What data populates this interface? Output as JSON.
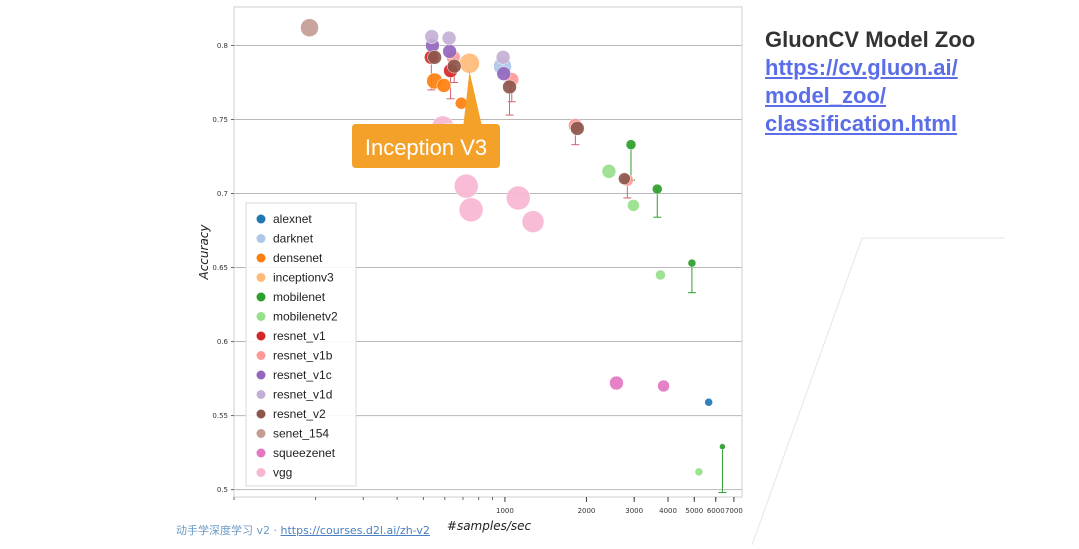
{
  "slide": {
    "title": "GluonCV Model Zoo",
    "link_lines": [
      "https://cv.gluon.ai/",
      "model_zoo/",
      "classification.html"
    ],
    "footer_text": "动手学深度学习 v2 · ",
    "footer_link": "https://courses.d2l.ai/zh-v2"
  },
  "callout": {
    "text": "Inception V3",
    "color": "#f4a12a"
  },
  "chart_data": {
    "type": "scatter",
    "xlabel": "#samples/sec",
    "ylabel": "Accuracy",
    "x_scale": "log",
    "xlim": [
      100,
      7500
    ],
    "ylim": [
      0.495,
      0.826
    ],
    "x_ticks": [
      1000,
      2000,
      3000,
      4000,
      5000,
      6000,
      7000
    ],
    "y_ticks": [
      0.5,
      0.55,
      0.6,
      0.65,
      0.7,
      0.75,
      0.8
    ],
    "y_tick_labels": [
      "0.5",
      "0.55",
      "0.6",
      "0.65",
      "0.7",
      "0.75",
      "0.8"
    ],
    "grid": "horizontal",
    "legend_position": "bottom-left",
    "series": [
      {
        "name": "alexnet",
        "color": "#1f77b4",
        "points": [
          [
            5650,
            0.559,
            4
          ]
        ]
      },
      {
        "name": "darknet",
        "color": "#aec7e8",
        "points": [
          [
            980,
            0.786,
            9
          ]
        ]
      },
      {
        "name": "densenet",
        "color": "#ff7f0e",
        "points": [
          [
            550,
            0.776,
            8
          ],
          [
            595,
            0.773,
            7
          ],
          [
            690,
            0.761,
            6
          ],
          [
            760,
            0.749,
            6
          ]
        ]
      },
      {
        "name": "inceptionv3",
        "color": "#ffbb78",
        "points": [
          [
            740,
            0.788,
            10
          ]
        ]
      },
      {
        "name": "mobilenet",
        "color": "#2ca02c",
        "points": [
          [
            2920,
            0.733,
            5
          ],
          [
            3650,
            0.703,
            5
          ],
          [
            4900,
            0.653,
            4
          ],
          [
            6350,
            0.529,
            3
          ]
        ],
        "errors": [
          [
            0.733,
            0.709
          ],
          [
            0.703,
            0.684
          ],
          [
            0.653,
            0.633
          ],
          [
            0.529,
            0.498
          ]
        ]
      },
      {
        "name": "mobilenetv2",
        "color": "#98df8a",
        "points": [
          [
            2420,
            0.715,
            7
          ],
          [
            2980,
            0.692,
            6
          ],
          [
            3750,
            0.645,
            5
          ],
          [
            5200,
            0.512,
            4
          ]
        ]
      },
      {
        "name": "resnet_v1",
        "color": "#d62728",
        "points": [
          [
            535,
            0.792,
            7
          ],
          [
            630,
            0.783,
            7
          ]
        ],
        "errors": [
          [
            0.792,
            0.77
          ],
          [
            0.783,
            0.764
          ]
        ]
      },
      {
        "name": "resnet_v1b",
        "color": "#ff9896",
        "points": [
          [
            645,
            0.792,
            7
          ],
          [
            1060,
            0.777,
            7
          ],
          [
            1820,
            0.746,
            7
          ],
          [
            2830,
            0.709,
            6
          ]
        ],
        "errors": [
          [
            0.777,
            0.762
          ],
          [
            0.746,
            0.733
          ],
          [
            0.709,
            0.697
          ]
        ]
      },
      {
        "name": "resnet_v1c",
        "color": "#9467bd",
        "points": [
          [
            540,
            0.8,
            7
          ],
          [
            625,
            0.796,
            7
          ],
          [
            990,
            0.781,
            7
          ]
        ]
      },
      {
        "name": "resnet_v1d",
        "color": "#c5b0d5",
        "points": [
          [
            537,
            0.806,
            7
          ],
          [
            622,
            0.805,
            7
          ],
          [
            985,
            0.792,
            7
          ]
        ]
      },
      {
        "name": "resnet_v2",
        "color": "#8c564b",
        "points": [
          [
            550,
            0.792,
            7
          ],
          [
            650,
            0.786,
            7
          ],
          [
            1040,
            0.772,
            7
          ],
          [
            1850,
            0.744,
            7
          ],
          [
            2760,
            0.71,
            6
          ]
        ],
        "errors": [
          [
            0.786,
            0.775
          ],
          [
            0.772,
            0.753
          ]
        ]
      },
      {
        "name": "senet_154",
        "color": "#c49c94",
        "points": [
          [
            190,
            0.812,
            9
          ]
        ]
      },
      {
        "name": "squeezenet",
        "color": "#e377c2",
        "points": [
          [
            2580,
            0.572,
            7
          ],
          [
            3850,
            0.57,
            6
          ]
        ]
      },
      {
        "name": "vgg",
        "color": "#f7b6d2",
        "points": [
          [
            590,
            0.745,
            11
          ],
          [
            620,
            0.74,
            11
          ],
          [
            720,
            0.705,
            12
          ],
          [
            750,
            0.689,
            12
          ],
          [
            1120,
            0.697,
            12
          ],
          [
            1270,
            0.681,
            11
          ]
        ]
      }
    ]
  }
}
